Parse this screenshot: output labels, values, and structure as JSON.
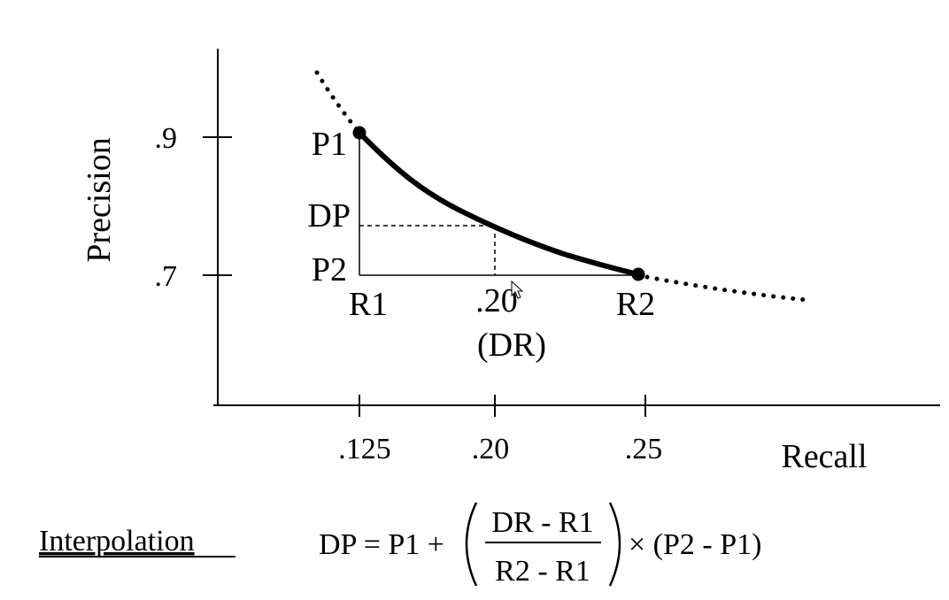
{
  "axes": {
    "y_label": "Precision",
    "x_label": "Recall",
    "y_ticks": [
      ".9",
      ".7"
    ],
    "x_ticks": [
      ".125",
      ".20",
      ".25"
    ]
  },
  "points": {
    "p1": "P1",
    "p2": "P2",
    "dp": "DP",
    "r1": "R1",
    "r2": "R2",
    "mid_value": ".20",
    "dr": "(DR)"
  },
  "interpolation": {
    "heading": "Interpolation",
    "lhs": "DP = P1 +",
    "numerator": "DR - R1",
    "denominator": "R2 - R1",
    "rhs": "× (P2 - P1)"
  },
  "colors": {
    "ink": "#000000",
    "background": "#ffffff"
  }
}
